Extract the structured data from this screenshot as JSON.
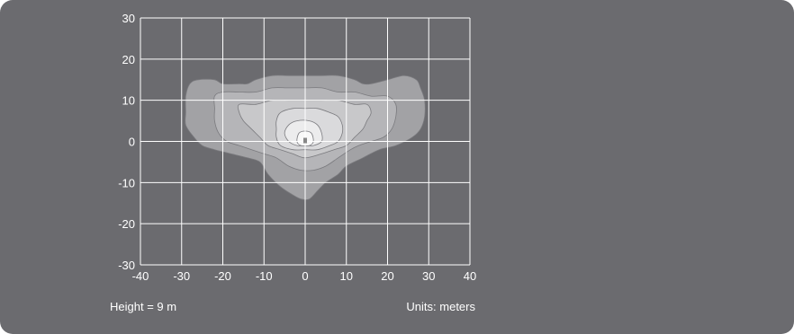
{
  "chart_data": {
    "type": "contour",
    "xlim": [
      -40,
      40
    ],
    "ylim": [
      -30,
      30
    ],
    "xticks": [
      "-40",
      "-30",
      "-20",
      "-10",
      "0",
      "10",
      "20",
      "30",
      "40"
    ],
    "yticks": [
      "30",
      "20",
      "10",
      "0",
      "-10",
      "-20",
      "-30"
    ],
    "grid": true,
    "colors": {
      "background": "#6b6b6f",
      "plot_area": "#6b6b6f",
      "grid": "#ffffff",
      "levels": [
        "#a2a2a5",
        "#b5b5b8",
        "#c8c8ca",
        "#dadadc",
        "#ececed",
        "#f8f8f8"
      ],
      "fixture": "#888888"
    },
    "fixture": {
      "x": 0,
      "y": 0
    },
    "contours": [
      {
        "level": 1,
        "points": [
          [
            -28,
            14
          ],
          [
            -26,
            15
          ],
          [
            -22,
            15
          ],
          [
            -20,
            14
          ],
          [
            -16,
            14
          ],
          [
            -14,
            14
          ],
          [
            -12,
            15
          ],
          [
            -8,
            16
          ],
          [
            -4,
            16
          ],
          [
            0,
            16
          ],
          [
            4,
            16
          ],
          [
            8,
            16
          ],
          [
            12,
            15
          ],
          [
            14,
            14
          ],
          [
            16,
            14
          ],
          [
            20,
            15
          ],
          [
            24,
            16
          ],
          [
            27,
            15
          ],
          [
            28,
            13
          ],
          [
            29,
            10
          ],
          [
            29,
            6
          ],
          [
            28,
            3
          ],
          [
            26,
            1
          ],
          [
            22,
            -1
          ],
          [
            18,
            -2
          ],
          [
            14,
            -4
          ],
          [
            10,
            -6
          ],
          [
            8,
            -8
          ],
          [
            5,
            -10
          ],
          [
            3,
            -12
          ],
          [
            1,
            -14
          ],
          [
            -1,
            -14
          ],
          [
            -3,
            -13
          ],
          [
            -6,
            -11
          ],
          [
            -9,
            -8
          ],
          [
            -11,
            -5
          ],
          [
            -14,
            -4
          ],
          [
            -18,
            -3
          ],
          [
            -22,
            -2
          ],
          [
            -25,
            -1
          ],
          [
            -27,
            1
          ],
          [
            -29,
            4
          ],
          [
            -29,
            7
          ],
          [
            -29,
            11
          ]
        ]
      },
      {
        "level": 2,
        "points": [
          [
            -22,
            11
          ],
          [
            -20,
            12
          ],
          [
            -16,
            12
          ],
          [
            -12,
            12
          ],
          [
            -8,
            13
          ],
          [
            -4,
            13
          ],
          [
            0,
            13
          ],
          [
            4,
            13
          ],
          [
            8,
            12
          ],
          [
            12,
            12
          ],
          [
            16,
            11
          ],
          [
            20,
            11
          ],
          [
            22,
            9
          ],
          [
            22,
            6
          ],
          [
            21,
            3
          ],
          [
            19,
            1
          ],
          [
            16,
            0
          ],
          [
            13,
            -1
          ],
          [
            11,
            -2
          ],
          [
            8,
            -4
          ],
          [
            5,
            -6
          ],
          [
            2,
            -7
          ],
          [
            -1,
            -7
          ],
          [
            -4,
            -6
          ],
          [
            -7,
            -4
          ],
          [
            -10,
            -3
          ],
          [
            -13,
            -2
          ],
          [
            -16,
            -1
          ],
          [
            -19,
            0
          ],
          [
            -21,
            2
          ],
          [
            -22,
            5
          ],
          [
            -22,
            8
          ]
        ]
      },
      {
        "level": 3,
        "points": [
          [
            -16,
            9
          ],
          [
            -12,
            9
          ],
          [
            -8,
            10
          ],
          [
            -4,
            10
          ],
          [
            0,
            10
          ],
          [
            4,
            10
          ],
          [
            8,
            10
          ],
          [
            12,
            9
          ],
          [
            15,
            9
          ],
          [
            16,
            7
          ],
          [
            15,
            5
          ],
          [
            14,
            3
          ],
          [
            12,
            1
          ],
          [
            10,
            -1
          ],
          [
            7,
            -2
          ],
          [
            4,
            -3
          ],
          [
            0,
            -4
          ],
          [
            -3,
            -3
          ],
          [
            -6,
            -2
          ],
          [
            -9,
            -1
          ],
          [
            -11,
            1
          ],
          [
            -13,
            3
          ],
          [
            -15,
            5
          ],
          [
            -16,
            7
          ]
        ]
      },
      {
        "level": 4,
        "points": [
          [
            -6,
            7
          ],
          [
            -3,
            8
          ],
          [
            0,
            8
          ],
          [
            3,
            8
          ],
          [
            6,
            7
          ],
          [
            8,
            6
          ],
          [
            9,
            4
          ],
          [
            9,
            2
          ],
          [
            8,
            0
          ],
          [
            6,
            -1
          ],
          [
            3,
            -2
          ],
          [
            0,
            -2
          ],
          [
            -3,
            -2
          ],
          [
            -6,
            -1
          ],
          [
            -7,
            1
          ],
          [
            -7,
            3
          ],
          [
            -7,
            5
          ]
        ]
      },
      {
        "level": 5,
        "points": [
          [
            -4,
            4
          ],
          [
            -2,
            5
          ],
          [
            1,
            5
          ],
          [
            3,
            4
          ],
          [
            4,
            2
          ],
          [
            4,
            0
          ],
          [
            2,
            -1
          ],
          [
            0,
            -1
          ],
          [
            -2,
            -1
          ],
          [
            -4,
            0
          ],
          [
            -5,
            2
          ]
        ]
      },
      {
        "level": 6,
        "points": [
          [
            -1.5,
            2
          ],
          [
            0,
            2.5
          ],
          [
            1.5,
            2
          ],
          [
            2,
            0
          ],
          [
            1,
            -1
          ],
          [
            -1,
            -1
          ],
          [
            -2,
            0
          ]
        ]
      }
    ],
    "annotations": {
      "height_label": "Height = 9 m",
      "units_label": "Units: meters"
    }
  }
}
